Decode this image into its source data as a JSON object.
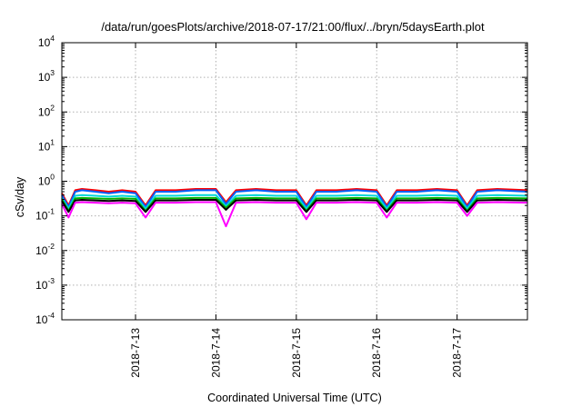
{
  "chart_data": {
    "type": "line",
    "title": "/data/run/goesPlots/archive/2018-07-17/21:00/flux/../bryn/5daysEarth.plot",
    "xlabel": "Coordinated Universal Time (UTC)",
    "ylabel": "cSv/day",
    "yscale": "log",
    "ylim": [
      0.0001,
      10000
    ],
    "xlim": [
      "2018-07-12 02:00",
      "2018-07-17 21:00"
    ],
    "grid": true,
    "legend": "none",
    "y_ticks": [
      {
        "base": "10",
        "exp": "-4",
        "value": 0.0001
      },
      {
        "base": "10",
        "exp": "-3",
        "value": 0.001
      },
      {
        "base": "10",
        "exp": "-2",
        "value": 0.01
      },
      {
        "base": "10",
        "exp": "-1",
        "value": 0.1
      },
      {
        "base": "10",
        "exp": "0",
        "value": 1
      },
      {
        "base": "10",
        "exp": "1",
        "value": 10
      },
      {
        "base": "10",
        "exp": "2",
        "value": 100
      },
      {
        "base": "10",
        "exp": "3",
        "value": 1000
      },
      {
        "base": "10",
        "exp": "4",
        "value": 10000
      }
    ],
    "x_ticks": [
      {
        "label": "2018-7-13",
        "value": "2018-07-13 00:00"
      },
      {
        "label": "2018-7-14",
        "value": "2018-07-14 00:00"
      },
      {
        "label": "2018-7-15",
        "value": "2018-07-15 00:00"
      },
      {
        "label": "2018-7-16",
        "value": "2018-07-16 00:00"
      },
      {
        "label": "2018-7-17",
        "value": "2018-07-17 00:00"
      }
    ],
    "x": [
      "2018-07-12 02:00",
      "2018-07-12 04:00",
      "2018-07-12 06:00",
      "2018-07-12 08:00",
      "2018-07-12 12:00",
      "2018-07-12 16:00",
      "2018-07-12 20:00",
      "2018-07-13 00:00",
      "2018-07-13 03:00",
      "2018-07-13 06:00",
      "2018-07-13 12:00",
      "2018-07-13 18:00",
      "2018-07-14 00:00",
      "2018-07-14 03:00",
      "2018-07-14 06:00",
      "2018-07-14 12:00",
      "2018-07-14 18:00",
      "2018-07-15 00:00",
      "2018-07-15 03:00",
      "2018-07-15 06:00",
      "2018-07-15 12:00",
      "2018-07-15 18:00",
      "2018-07-16 00:00",
      "2018-07-16 03:00",
      "2018-07-16 06:00",
      "2018-07-16 12:00",
      "2018-07-16 18:00",
      "2018-07-17 00:00",
      "2018-07-17 03:00",
      "2018-07-17 06:00",
      "2018-07-17 12:00",
      "2018-07-17 21:00"
    ],
    "series": [
      {
        "color": "#ff0000",
        "values": [
          0.45,
          0.2,
          0.55,
          0.6,
          0.55,
          0.5,
          0.55,
          0.5,
          0.2,
          0.55,
          0.55,
          0.6,
          0.6,
          0.25,
          0.55,
          0.6,
          0.55,
          0.55,
          0.2,
          0.55,
          0.55,
          0.6,
          0.55,
          0.2,
          0.55,
          0.55,
          0.6,
          0.55,
          0.2,
          0.55,
          0.6,
          0.55
        ]
      },
      {
        "color": "#0060ff",
        "values": [
          0.4,
          0.18,
          0.5,
          0.55,
          0.5,
          0.45,
          0.5,
          0.45,
          0.18,
          0.5,
          0.5,
          0.55,
          0.55,
          0.22,
          0.5,
          0.55,
          0.5,
          0.5,
          0.18,
          0.5,
          0.5,
          0.55,
          0.5,
          0.18,
          0.5,
          0.5,
          0.55,
          0.5,
          0.18,
          0.5,
          0.55,
          0.5
        ]
      },
      {
        "color": "#00d8d8",
        "values": [
          0.33,
          0.16,
          0.38,
          0.4,
          0.38,
          0.36,
          0.38,
          0.36,
          0.16,
          0.38,
          0.38,
          0.4,
          0.4,
          0.19,
          0.38,
          0.4,
          0.38,
          0.38,
          0.16,
          0.38,
          0.38,
          0.4,
          0.38,
          0.16,
          0.38,
          0.38,
          0.4,
          0.38,
          0.16,
          0.38,
          0.4,
          0.38
        ]
      },
      {
        "color": "#00b000",
        "values": [
          0.3,
          0.14,
          0.32,
          0.33,
          0.32,
          0.31,
          0.32,
          0.31,
          0.14,
          0.32,
          0.32,
          0.33,
          0.33,
          0.17,
          0.32,
          0.33,
          0.32,
          0.32,
          0.14,
          0.32,
          0.32,
          0.33,
          0.32,
          0.14,
          0.32,
          0.32,
          0.33,
          0.32,
          0.14,
          0.32,
          0.33,
          0.32
        ]
      },
      {
        "color": "#000000",
        "values": [
          0.27,
          0.13,
          0.28,
          0.29,
          0.28,
          0.27,
          0.28,
          0.27,
          0.13,
          0.28,
          0.28,
          0.29,
          0.29,
          0.15,
          0.28,
          0.29,
          0.28,
          0.28,
          0.13,
          0.28,
          0.28,
          0.29,
          0.28,
          0.13,
          0.28,
          0.28,
          0.29,
          0.28,
          0.13,
          0.28,
          0.29,
          0.28
        ]
      },
      {
        "color": "#ff00ff",
        "values": [
          0.22,
          0.09,
          0.24,
          0.25,
          0.24,
          0.23,
          0.24,
          0.23,
          0.09,
          0.24,
          0.24,
          0.25,
          0.25,
          0.05,
          0.24,
          0.25,
          0.24,
          0.24,
          0.08,
          0.24,
          0.24,
          0.25,
          0.24,
          0.09,
          0.24,
          0.24,
          0.25,
          0.24,
          0.1,
          0.24,
          0.25,
          0.24
        ]
      }
    ]
  }
}
